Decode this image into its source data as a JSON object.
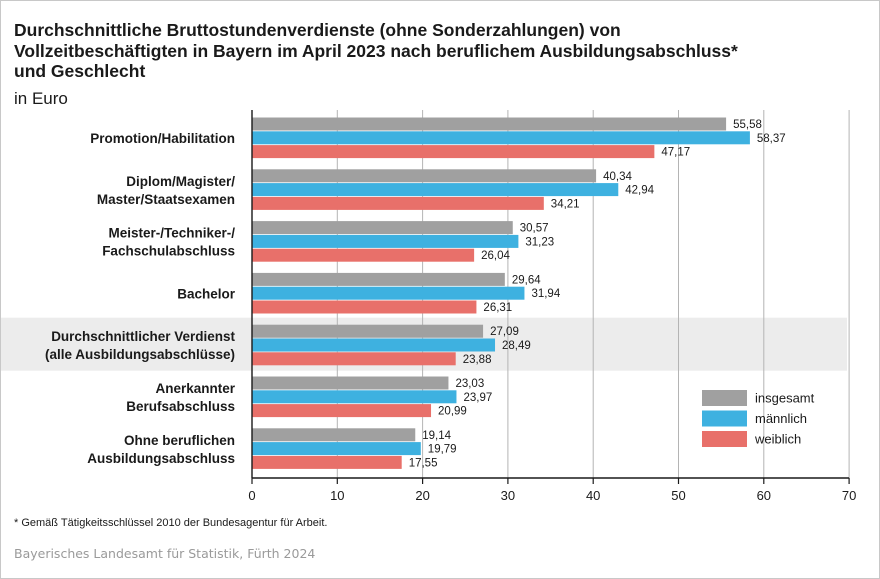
{
  "title_lines": [
    "Durchschnittliche Bruttostundenverdienste (ohne Sonderzahlungen) von",
    "Vollzeitbeschäftigten in Bayern im April 2023 nach beruflichem Ausbildungsabschluss*",
    "und Geschlecht"
  ],
  "subtitle": "in Euro",
  "footnote": "* Gemäß Tätigkeitsschlüssel 2010 der Bundesagentur für Arbeit.",
  "source": "Bayerisches Landesamt für Statistik, Fürth 2024",
  "chart_data": {
    "type": "bar",
    "orientation": "horizontal",
    "categories": [
      [
        "Promotion/Habilitation"
      ],
      [
        "Diplom/Magister/",
        "Master/Staatsexamen"
      ],
      [
        "Meister-/Techniker-/",
        "Fachschulabschluss"
      ],
      [
        "Bachelor"
      ],
      [
        "Durchschnittlicher Verdienst",
        "(alle Ausbildungsabschlüsse)"
      ],
      [
        "Anerkannter",
        "Berufsabschluss"
      ],
      [
        "Ohne beruflichen",
        "Ausbildungsabschluss"
      ]
    ],
    "highlighted_category_index": 4,
    "series": [
      {
        "name": "insgesamt",
        "color": "#a0a0a0",
        "values": [
          55.58,
          40.34,
          30.57,
          29.64,
          27.09,
          23.03,
          19.14
        ],
        "labels": [
          "55,58",
          "40,34",
          "30,57",
          "29,64",
          "27,09",
          "23,03",
          "19,14"
        ]
      },
      {
        "name": "männlich",
        "color": "#3eb1e0",
        "values": [
          58.37,
          42.94,
          31.23,
          31.94,
          28.49,
          23.97,
          19.79
        ],
        "labels": [
          "58,37",
          "42,94",
          "31,23",
          "31,94",
          "28,49",
          "23,97",
          "19,79"
        ]
      },
      {
        "name": "weiblich",
        "color": "#e8706a",
        "values": [
          47.17,
          34.21,
          26.04,
          26.31,
          23.88,
          20.99,
          17.55
        ],
        "labels": [
          "47,17",
          "34,21",
          "26,04",
          "26,31",
          "23,88",
          "20,99",
          "17,55"
        ]
      }
    ],
    "xlim": [
      0,
      70
    ],
    "xticks": [
      0,
      10,
      20,
      30,
      40,
      50,
      60,
      70
    ],
    "grid": "vertical",
    "legend_position": "lower-right"
  }
}
